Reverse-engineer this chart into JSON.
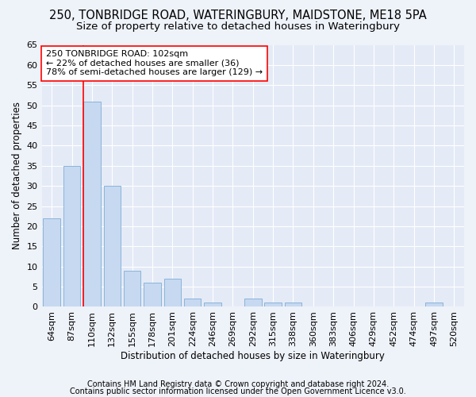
{
  "title1": "250, TONBRIDGE ROAD, WATERINGBURY, MAIDSTONE, ME18 5PA",
  "title2": "Size of property relative to detached houses in Wateringbury",
  "xlabel": "Distribution of detached houses by size in Wateringbury",
  "ylabel": "Number of detached properties",
  "categories": [
    "64sqm",
    "87sqm",
    "110sqm",
    "132sqm",
    "155sqm",
    "178sqm",
    "201sqm",
    "224sqm",
    "246sqm",
    "269sqm",
    "292sqm",
    "315sqm",
    "338sqm",
    "360sqm",
    "383sqm",
    "406sqm",
    "429sqm",
    "452sqm",
    "474sqm",
    "497sqm",
    "520sqm"
  ],
  "values": [
    22,
    35,
    51,
    30,
    9,
    6,
    7,
    2,
    1,
    0,
    2,
    1,
    1,
    0,
    0,
    0,
    0,
    0,
    0,
    1,
    0
  ],
  "bar_color": "#c6d9f1",
  "bar_edge_color": "#8ab4d9",
  "annotation_line_color": "red",
  "annotation_text_line1": "250 TONBRIDGE ROAD: 102sqm",
  "annotation_text_line2": "← 22% of detached houses are smaller (36)",
  "annotation_text_line3": "78% of semi-detached houses are larger (129) →",
  "annotation_box_color": "white",
  "annotation_box_edge": "red",
  "ylim": [
    0,
    65
  ],
  "yticks": [
    0,
    5,
    10,
    15,
    20,
    25,
    30,
    35,
    40,
    45,
    50,
    55,
    60,
    65
  ],
  "footer1": "Contains HM Land Registry data © Crown copyright and database right 2024.",
  "footer2": "Contains public sector information licensed under the Open Government Licence v3.0.",
  "bg_color": "#eef2f9",
  "plot_bg_color": "#e4eaf6",
  "grid_color": "white",
  "title_fontsize": 10.5,
  "subtitle_fontsize": 9.5,
  "axis_label_fontsize": 8.5,
  "tick_fontsize": 8,
  "annotation_fontsize": 8,
  "footer_fontsize": 7
}
